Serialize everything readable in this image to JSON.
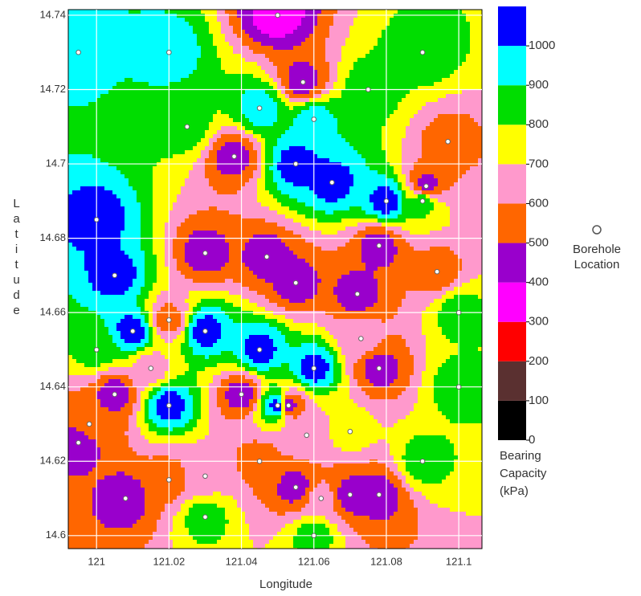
{
  "chart_data": {
    "type": "contour",
    "x_label": "Longitude",
    "y_label": "Latitude",
    "xlim": [
      120.9922,
      121.1064
    ],
    "ylim": [
      14.5965,
      14.7415
    ],
    "xticks": [
      121,
      121.02,
      121.04,
      121.06,
      121.08,
      121.1
    ],
    "yticks": [
      14.6,
      14.62,
      14.64,
      14.66,
      14.68,
      14.7,
      14.72,
      14.74
    ],
    "grid": true,
    "colorbar": {
      "title": [
        "Bearing",
        "Capacity",
        "(kPa)"
      ],
      "lim": [
        0,
        1100
      ],
      "ticks": [
        0,
        100,
        200,
        300,
        400,
        500,
        600,
        700,
        800,
        900,
        1000
      ],
      "colors": [
        "#000000",
        "#5a3030",
        "#ff0000",
        "#ff00ff",
        "#9900cc",
        "#ff6600",
        "#ff99cc",
        "#ffff00",
        "#00dd00",
        "#00ffff",
        "#0000ff"
      ]
    },
    "legend": {
      "label": [
        "Borehole",
        "Location"
      ]
    },
    "boreholes": {
      "x": [
        121.005,
        121.0,
        121.01,
        121.03,
        121.045,
        121.06,
        121.05,
        121.02,
        121.055,
        121.065,
        121.08,
        120.995,
        121.02,
        121.045,
        121.06,
        121.09,
        121.09,
        121.1,
        121.09,
        121.06,
        121.03,
        121.0,
        121.025,
        121.1,
        121.075,
        121.05,
        121.057,
        121.038,
        121.097,
        121.091,
        121.03,
        121.047,
        121.055,
        121.078,
        121.094,
        121.072,
        121.078,
        121.073,
        120.995,
        121.008,
        120.998,
        121.005,
        121.045,
        121.055,
        121.078,
        121.07,
        121.062,
        121.02,
        121.03,
        121.04,
        121.053,
        121.058,
        121.02,
        121.015,
        121.07
      ],
      "y": [
        14.67,
        14.685,
        14.655,
        14.655,
        14.65,
        14.645,
        14.635,
        14.635,
        14.7,
        14.695,
        14.69,
        14.73,
        14.73,
        14.715,
        14.712,
        14.73,
        14.69,
        14.64,
        14.62,
        14.6,
        14.605,
        14.65,
        14.71,
        14.66,
        14.72,
        14.74,
        14.722,
        14.702,
        14.706,
        14.694,
        14.676,
        14.675,
        14.668,
        14.678,
        14.671,
        14.665,
        14.645,
        14.653,
        14.625,
        14.61,
        14.63,
        14.638,
        14.62,
        14.613,
        14.611,
        14.611,
        14.61,
        14.615,
        14.616,
        14.638,
        14.635,
        14.627,
        14.658,
        14.645,
        14.628
      ],
      "values": [
        1050,
        1050,
        1050,
        1050,
        1050,
        1050,
        1050,
        1050,
        1050,
        1050,
        1050,
        950,
        950,
        950,
        950,
        850,
        850,
        850,
        850,
        850,
        850,
        850,
        850,
        850,
        850,
        350,
        450,
        450,
        550,
        450,
        450,
        450,
        450,
        450,
        550,
        450,
        450,
        650,
        450,
        450,
        550,
        450,
        550,
        450,
        450,
        450,
        650,
        550,
        650,
        450,
        450,
        650,
        550,
        650,
        750
      ]
    }
  }
}
